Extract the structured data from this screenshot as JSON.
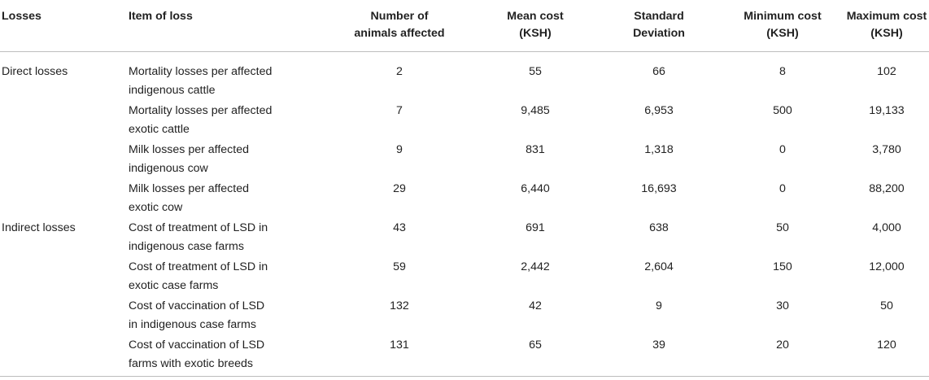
{
  "table": {
    "headers": {
      "losses": "Losses",
      "item": "Item of loss",
      "n_line1": "Number of",
      "n_line2": "animals affected",
      "mean_line1": "Mean cost",
      "mean_line2": "(KSH)",
      "sd_line1": "Standard",
      "sd_line2": "Deviation",
      "min_line1": "Minimum cost",
      "min_line2": "(KSH)",
      "max_line1": "Maximum cost",
      "max_line2": "(KSH)"
    },
    "rows": [
      {
        "category": "Direct losses",
        "item_line1": "Mortality losses per affected",
        "item_line2": "indigenous cattle",
        "n": "2",
        "mean": "55",
        "sd": "66",
        "min": "8",
        "max": "102"
      },
      {
        "category": "",
        "item_line1": "Mortality losses per affected",
        "item_line2": "exotic cattle",
        "n": "7",
        "mean": "9,485",
        "sd": "6,953",
        "min": "500",
        "max": "19,133"
      },
      {
        "category": "",
        "item_line1": "Milk losses per affected",
        "item_line2": "indigenous cow",
        "n": "9",
        "mean": "831",
        "sd": "1,318",
        "min": "0",
        "max": "3,780"
      },
      {
        "category": "",
        "item_line1": "Milk losses per affected",
        "item_line2": "exotic cow",
        "n": "29",
        "mean": "6,440",
        "sd": "16,693",
        "min": "0",
        "max": "88,200"
      },
      {
        "category": "Indirect losses",
        "item_line1": "Cost of treatment of LSD in",
        "item_line2": "indigenous case farms",
        "n": "43",
        "mean": "691",
        "sd": "638",
        "min": "50",
        "max": "4,000"
      },
      {
        "category": "",
        "item_line1": "Cost of treatment of LSD in",
        "item_line2": "exotic case farms",
        "n": "59",
        "mean": "2,442",
        "sd": "2,604",
        "min": "150",
        "max": "12,000"
      },
      {
        "category": "",
        "item_line1": "Cost of vaccination of LSD",
        "item_line2": "in indigenous case farms",
        "n": "132",
        "mean": "42",
        "sd": "9",
        "min": "30",
        "max": "50"
      },
      {
        "category": "",
        "item_line1": "Cost of vaccination of LSD",
        "item_line2": "farms with exotic breeds",
        "n": "131",
        "mean": "65",
        "sd": "39",
        "min": "20",
        "max": "120"
      }
    ]
  }
}
